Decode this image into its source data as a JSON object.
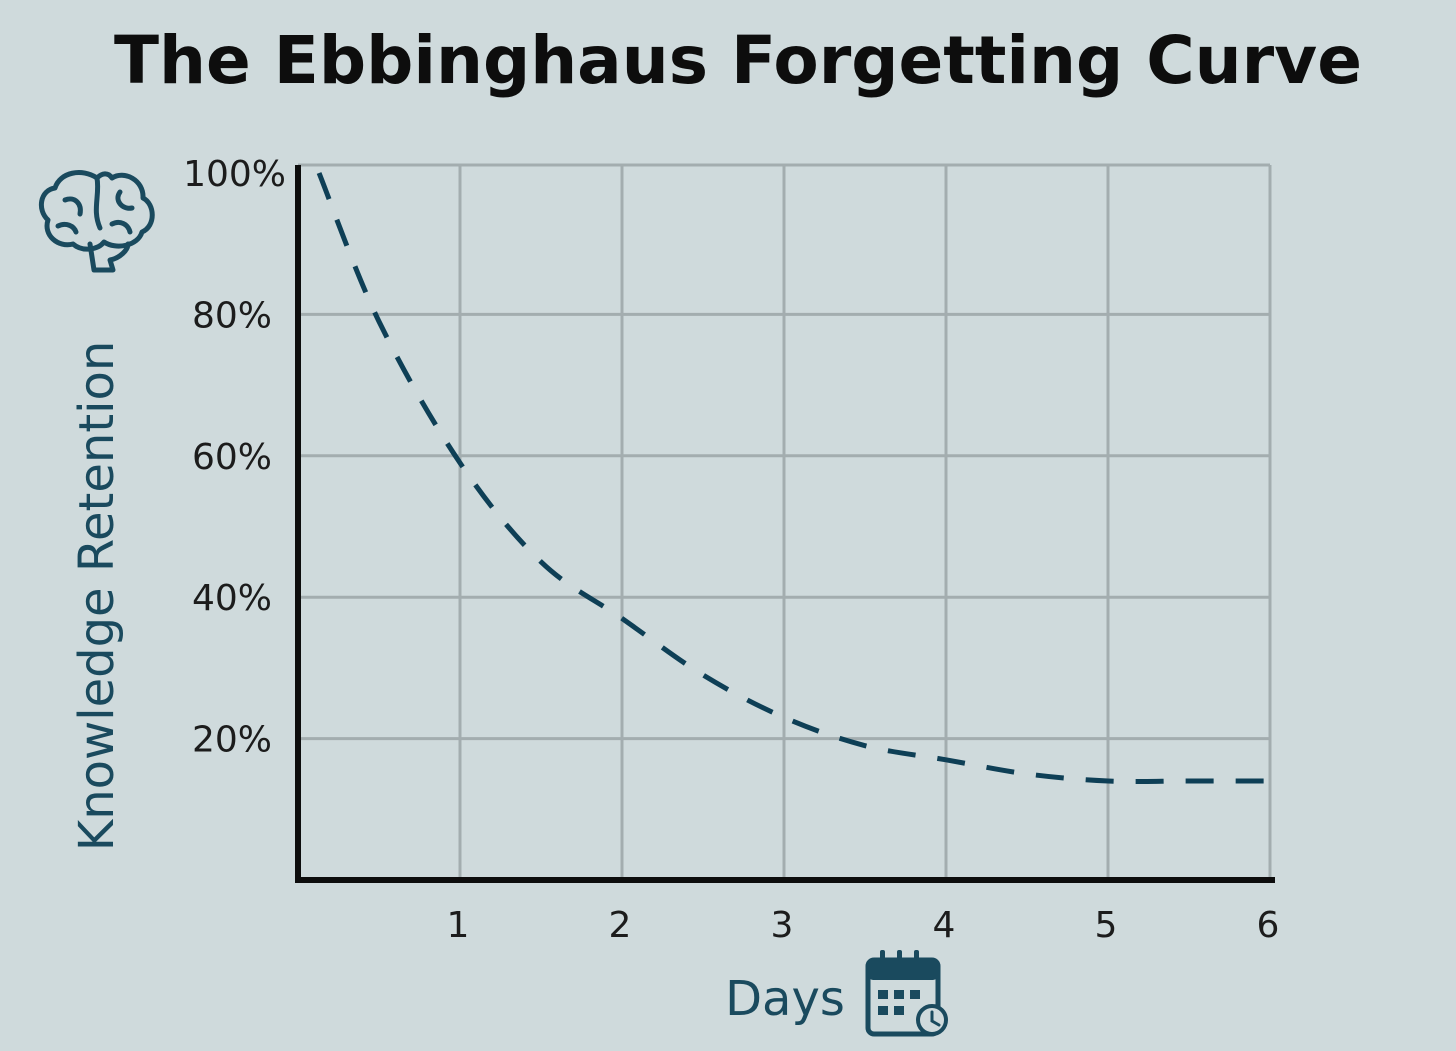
{
  "colors": {
    "background": "#cfdadc",
    "grid": "#a3adaf",
    "axis": "#0d0d0d",
    "curve": "#0e3f56",
    "accent": "#1a4a5e",
    "title": "#0d0d0d"
  },
  "icons": {
    "y_axis_icon": "brain-icon",
    "x_axis_icon": "calendar-clock-icon"
  },
  "chart_data": {
    "type": "line",
    "title": "The Ebbinghaus Forgetting Curve",
    "xlabel": "Days",
    "ylabel": "Knowledge Retention",
    "xlim": [
      0,
      6
    ],
    "ylim": [
      0,
      100
    ],
    "x_ticks": [
      1,
      2,
      3,
      4,
      5,
      6
    ],
    "x_tick_labels": [
      "1",
      "2",
      "3",
      "4",
      "5",
      "6"
    ],
    "y_ticks": [
      20,
      40,
      60,
      80,
      100
    ],
    "y_tick_labels": [
      "20%",
      "40%",
      "60%",
      "80%",
      "100%"
    ],
    "grid": true,
    "line_style": "dashed",
    "series": [
      {
        "x": [
          0.13,
          0.5,
          1,
          1.5,
          2,
          2.5,
          3,
          3.5,
          4,
          4.5,
          5,
          5.5,
          6
        ],
        "values": [
          100,
          79,
          59,
          45,
          37,
          29,
          23,
          19,
          17,
          15,
          14,
          14,
          14
        ]
      }
    ]
  }
}
